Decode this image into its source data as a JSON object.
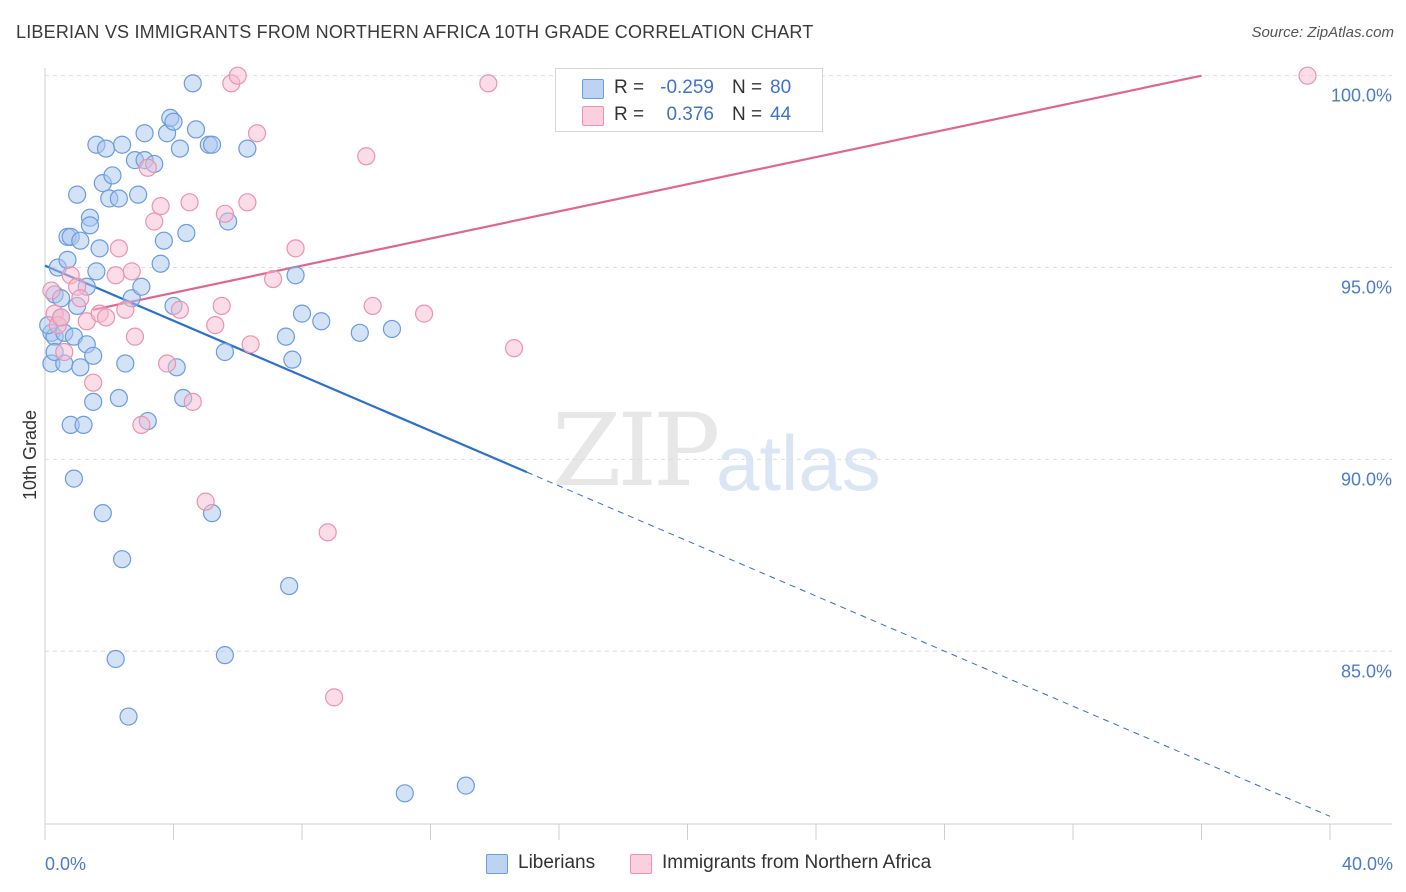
{
  "title": "LIBERIAN VS IMMIGRANTS FROM NORTHERN AFRICA 10TH GRADE CORRELATION CHART",
  "source": "Source: ZipAtlas.com",
  "watermark": {
    "zip": "ZIP",
    "atlas": "atlas"
  },
  "legend": {
    "rows": [
      {
        "r_label": "R =",
        "r_value": "-0.259",
        "n_label": "N =",
        "n_value": "80",
        "color": "#a9c6ee"
      },
      {
        "r_label": "R =",
        "r_value": "0.376",
        "n_label": "N =",
        "n_value": "44",
        "color": "#f6bcd0"
      }
    ]
  },
  "bottom_legend": {
    "series1": "Liberians",
    "series2": "Immigrants from Northern Africa"
  },
  "chart_data": {
    "type": "scatter",
    "title": "LIBERIAN VS IMMIGRANTS FROM NORTHERN AFRICA 10TH GRADE CORRELATION CHART",
    "xlabel": "",
    "ylabel": "10th Grade",
    "xlim": [
      0,
      40
    ],
    "ylim": [
      80.5,
      100.2
    ],
    "x_tick_labels": [
      "0.0%",
      "40.0%"
    ],
    "y_ticks": [
      85,
      90,
      95,
      100
    ],
    "y_tick_labels": [
      "85.0%",
      "90.0%",
      "95.0%",
      "100.0%"
    ],
    "grid": true,
    "legend_position": "top-center",
    "series": [
      {
        "name": "Liberians",
        "color": "#6a9ce0",
        "fill": "#a9c6ee",
        "trend": {
          "x0": 0,
          "y0": 95.05,
          "x_solid_end": 15,
          "x1": 40,
          "y1": 80.7,
          "color": "#2f6fce"
        },
        "points": [
          [
            0.2,
            93.3
          ],
          [
            0.2,
            92.5
          ],
          [
            0.3,
            94.3
          ],
          [
            0.3,
            93.2
          ],
          [
            0.4,
            95.0
          ],
          [
            0.5,
            94.2
          ],
          [
            0.5,
            93.7
          ],
          [
            0.6,
            92.5
          ],
          [
            0.6,
            93.3
          ],
          [
            0.7,
            95.2
          ],
          [
            0.7,
            95.8
          ],
          [
            0.8,
            95.8
          ],
          [
            0.8,
            90.9
          ],
          [
            0.9,
            89.5
          ],
          [
            0.9,
            93.2
          ],
          [
            1.0,
            96.9
          ],
          [
            1.0,
            94.0
          ],
          [
            1.1,
            95.7
          ],
          [
            1.1,
            92.4
          ],
          [
            1.2,
            90.9
          ],
          [
            1.3,
            93.0
          ],
          [
            1.3,
            94.5
          ],
          [
            1.4,
            96.3
          ],
          [
            1.4,
            96.1
          ],
          [
            1.5,
            92.7
          ],
          [
            1.5,
            91.5
          ],
          [
            1.6,
            98.2
          ],
          [
            1.6,
            94.9
          ],
          [
            1.7,
            95.5
          ],
          [
            1.8,
            97.2
          ],
          [
            1.8,
            88.6
          ],
          [
            1.9,
            98.1
          ],
          [
            2.0,
            96.8
          ],
          [
            2.1,
            97.4
          ],
          [
            2.2,
            84.8
          ],
          [
            2.3,
            96.8
          ],
          [
            2.3,
            91.6
          ],
          [
            2.4,
            87.4
          ],
          [
            2.4,
            98.2
          ],
          [
            2.5,
            92.5
          ],
          [
            2.6,
            83.3
          ],
          [
            2.7,
            94.2
          ],
          [
            2.8,
            97.8
          ],
          [
            2.9,
            96.9
          ],
          [
            3.0,
            94.5
          ],
          [
            3.1,
            97.8
          ],
          [
            3.1,
            98.5
          ],
          [
            3.2,
            91.0
          ],
          [
            3.4,
            97.7
          ],
          [
            3.6,
            95.1
          ],
          [
            3.7,
            95.7
          ],
          [
            3.8,
            98.5
          ],
          [
            3.9,
            98.9
          ],
          [
            4.0,
            98.8
          ],
          [
            4.0,
            94.0
          ],
          [
            4.1,
            92.4
          ],
          [
            4.2,
            98.1
          ],
          [
            4.3,
            91.6
          ],
          [
            4.4,
            95.9
          ],
          [
            4.6,
            99.8
          ],
          [
            4.7,
            98.6
          ],
          [
            5.1,
            98.2
          ],
          [
            5.2,
            98.2
          ],
          [
            5.2,
            88.6
          ],
          [
            5.6,
            84.9
          ],
          [
            5.6,
            92.8
          ],
          [
            5.7,
            96.2
          ],
          [
            6.3,
            98.1
          ],
          [
            7.5,
            93.2
          ],
          [
            7.6,
            86.7
          ],
          [
            7.7,
            92.6
          ],
          [
            7.8,
            94.8
          ],
          [
            8.0,
            93.8
          ],
          [
            8.6,
            93.6
          ],
          [
            9.8,
            93.3
          ],
          [
            10.8,
            93.4
          ],
          [
            11.2,
            81.3
          ],
          [
            13.1,
            81.5
          ],
          [
            0.1,
            93.5
          ],
          [
            0.3,
            92.8
          ]
        ]
      },
      {
        "name": "Immigrants from Northern Africa",
        "color": "#ec92b1",
        "fill": "#f6bcd0",
        "trend": {
          "x0": 1.5,
          "y0": 93.9,
          "x1": 36,
          "y1": 100.0,
          "color": "#e06690"
        },
        "points": [
          [
            0.2,
            94.4
          ],
          [
            0.3,
            93.8
          ],
          [
            0.4,
            93.5
          ],
          [
            0.5,
            93.7
          ],
          [
            0.6,
            92.8
          ],
          [
            0.8,
            94.8
          ],
          [
            1.0,
            94.5
          ],
          [
            1.1,
            94.2
          ],
          [
            1.3,
            93.6
          ],
          [
            1.5,
            92.0
          ],
          [
            1.7,
            93.8
          ],
          [
            1.9,
            93.7
          ],
          [
            2.2,
            94.8
          ],
          [
            2.3,
            95.5
          ],
          [
            2.5,
            93.9
          ],
          [
            2.7,
            94.9
          ],
          [
            2.8,
            93.2
          ],
          [
            3.0,
            90.9
          ],
          [
            3.2,
            97.6
          ],
          [
            3.4,
            96.2
          ],
          [
            3.6,
            96.6
          ],
          [
            3.8,
            92.5
          ],
          [
            4.2,
            93.9
          ],
          [
            4.5,
            96.7
          ],
          [
            4.6,
            91.5
          ],
          [
            5.0,
            88.9
          ],
          [
            5.3,
            93.5
          ],
          [
            5.5,
            94.0
          ],
          [
            5.6,
            96.4
          ],
          [
            5.8,
            99.8
          ],
          [
            6.0,
            100.0
          ],
          [
            6.3,
            96.7
          ],
          [
            6.4,
            93.0
          ],
          [
            6.6,
            98.5
          ],
          [
            7.1,
            94.7
          ],
          [
            7.8,
            95.5
          ],
          [
            8.8,
            88.1
          ],
          [
            9.0,
            83.8
          ],
          [
            10.0,
            97.9
          ],
          [
            10.2,
            94.0
          ],
          [
            11.8,
            93.8
          ],
          [
            13.8,
            99.8
          ],
          [
            14.6,
            92.9
          ],
          [
            39.3,
            100.0
          ]
        ]
      }
    ]
  }
}
